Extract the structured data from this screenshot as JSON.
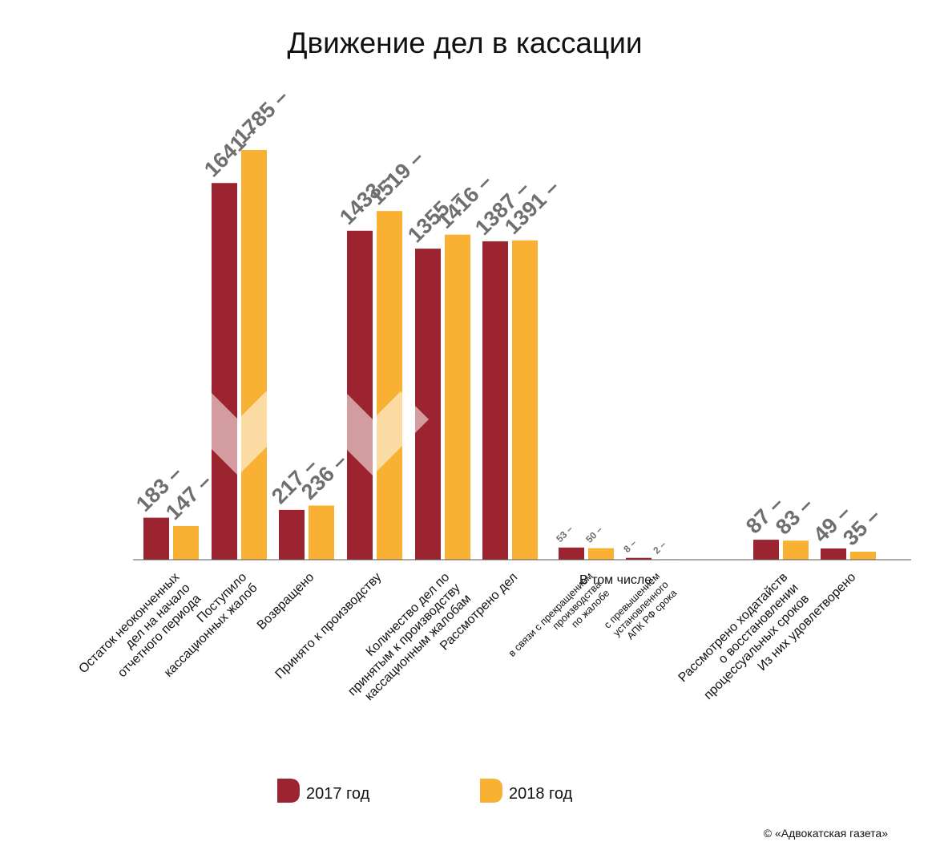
{
  "chart_data": {
    "type": "bar",
    "title": "Движение дел в кассации",
    "categories": [
      [
        "Остаток неоконченных",
        "дел на  начало",
        "отчетного периода"
      ],
      [
        "Поступило",
        "кассационных жалоб"
      ],
      [
        "Возвращено"
      ],
      [
        "Принято к производству"
      ],
      [
        "Количество дел по",
        "принятым к производству",
        "кассационным жалобам"
      ],
      [
        "Рассмотрено дел"
      ],
      [
        "в связи с прекращением",
        "производства",
        "по жалобе"
      ],
      [
        "с превышением",
        "установленного",
        "АПК РФ срока"
      ],
      [
        "Рассмотрено ходатайств",
        "о восстановлении",
        "процессуальных сроков"
      ],
      [
        "Из них удовлетворено"
      ]
    ],
    "series": [
      {
        "name": "2017 год",
        "color": "#9b2430",
        "values": [
          183,
          1641,
          217,
          1433,
          1355,
          1387,
          53,
          8,
          87,
          49
        ],
        "labels": [
          "183",
          "1641",
          "217",
          "1433",
          "1355",
          "1387",
          "53",
          "8",
          "87",
          "49"
        ]
      },
      {
        "name": "2018 год",
        "color": "#f8b132",
        "values": [
          147,
          1785,
          236,
          1519,
          1416,
          1391,
          50,
          2,
          83,
          35
        ],
        "labels": [
          "147",
          "1785",
          "236",
          "1519",
          "1416",
          "1391",
          "50",
          "2",
          "83",
          "35"
        ]
      }
    ],
    "subheading": "В том числе:",
    "ylim": [
      0,
      1785
    ],
    "grid": false,
    "legend_position": "bottom"
  },
  "credit": "© «Адвокатская газета»"
}
